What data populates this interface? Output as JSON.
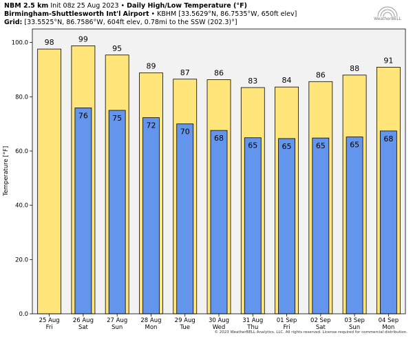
{
  "header": {
    "model": "NBM 2.5 km",
    "init": "Init 08z 25 Aug 2023",
    "sep": "•",
    "product": "Daily High/Low Temperature (°F)",
    "site_name": "Birmingham-Shuttlesworth Int'l Airport",
    "site_meta": "KBHM [33.5629°N, 86.7535°W, 650ft elev]",
    "grid_label": "Grid:",
    "grid_meta": "[33.5525°N, 86.7586°W, 604ft elev, 0.78mi to the SSW (202.3)°]"
  },
  "logo": {
    "text": "WeatherBELL"
  },
  "footer": {
    "copyright": "© 2023 WeatherBELL Analytics, LLC. All rights reserved. License required for commercial distribution."
  },
  "colors": {
    "high": "#FFE57A",
    "low": "#6495ED",
    "plot_bg": "#F2F2F2",
    "edge": "#000000"
  },
  "chart_data": {
    "type": "bar",
    "ylabel": "Temperature [°F]",
    "ylim": [
      0,
      105
    ],
    "yticks": [
      "0.0",
      "20.0",
      "40.0",
      "60.0",
      "80.0",
      "100.0"
    ],
    "grid": false,
    "categories": [
      "25 Aug",
      "26 Aug",
      "27 Aug",
      "28 Aug",
      "29 Aug",
      "30 Aug",
      "31 Aug",
      "01 Sep",
      "02 Sep",
      "03 Sep",
      "04 Sep"
    ],
    "weekdays": [
      "Fri",
      "Sat",
      "Sun",
      "Mon",
      "Tue",
      "Wed",
      "Thu",
      "Fri",
      "Sat",
      "Sun",
      "Mon"
    ],
    "series": [
      {
        "values": [
          98,
          99,
          95,
          89,
          87,
          86,
          83,
          84,
          86,
          88,
          91
        ],
        "display": [
          97.6,
          98.8,
          95.4,
          88.8,
          86.5,
          86.3,
          83.4,
          83.6,
          85.6,
          88.0,
          90.9
        ]
      },
      {
        "values": [
          null,
          76,
          75,
          72,
          70,
          68,
          65,
          65,
          65,
          65,
          68
        ],
        "display": [
          null,
          75.9,
          75.0,
          72.3,
          70.0,
          67.6,
          64.9,
          64.6,
          64.8,
          65.2,
          67.4
        ]
      }
    ]
  }
}
